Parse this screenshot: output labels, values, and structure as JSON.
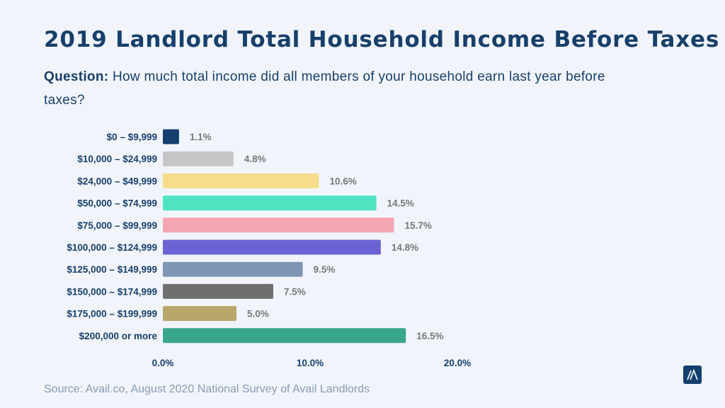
{
  "title": "2019 Landlord Total Household Income Before Taxes",
  "question": {
    "label": "Question:",
    "text": " How much total income did all members of your household earn last year before taxes?"
  },
  "source": "Source: Avail.co, August 2020 National Survey of Avail Landlords",
  "logo": "Avail",
  "chart_data": {
    "type": "bar",
    "orientation": "horizontal",
    "categories": [
      "$0 – $9,999",
      "$10,000 – $24,999",
      "$24,000 – $49,999",
      "$50,000 – $74,999",
      "$75,000 – $99,999",
      "$100,000 – $124,999",
      "$125,000 – $149,999",
      "$150,000 – $174,999",
      "$175,000 – $199,999",
      "$200,000 or more"
    ],
    "values": [
      1.1,
      4.8,
      10.6,
      14.5,
      15.7,
      14.8,
      9.5,
      7.5,
      5.0,
      16.5
    ],
    "data_labels": [
      "1.1%",
      "4.8%",
      "10.6%",
      "14.5%",
      "15.7%",
      "14.8%",
      "9.5%",
      "7.5%",
      "5.0%",
      "16.5%"
    ],
    "colors": [
      "#143f6e",
      "#c6c6c6",
      "#f7dc8b",
      "#50e3c2",
      "#f5a6b3",
      "#6b63d4",
      "#7f97b5",
      "#6f6f6f",
      "#b9a66a",
      "#3aa68a"
    ],
    "xlim": [
      0,
      20
    ],
    "xticks": [
      "0.0%",
      "10.0%",
      "20.0%"
    ],
    "grid": false,
    "legend": "none"
  }
}
